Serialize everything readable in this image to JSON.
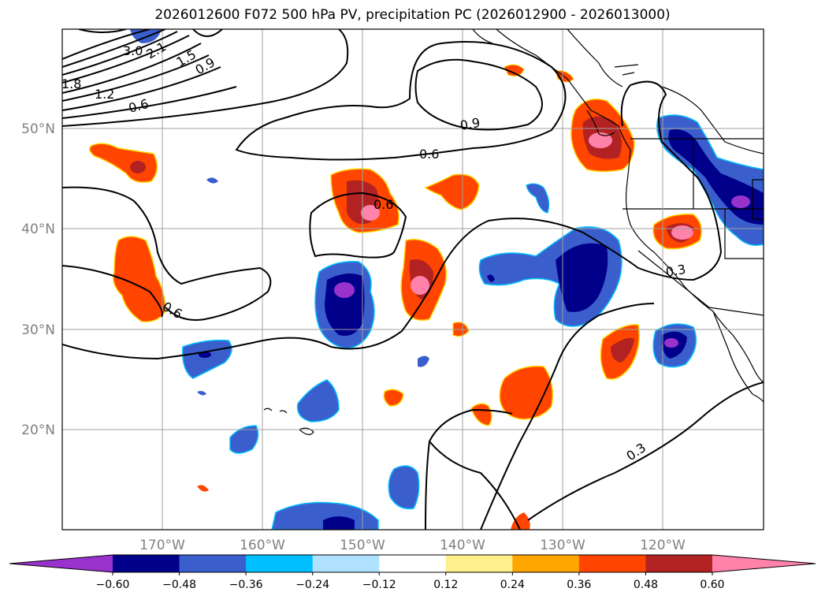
{
  "title": "2026012600 F072 500 hPa PV, precipitation PC (2026012900 - 2026013000)",
  "map": {
    "lon_labels": [
      "170°W",
      "160°W",
      "150°W",
      "140°W",
      "130°W",
      "120°W"
    ],
    "lat_labels": [
      "50°N",
      "40°N",
      "30°N",
      "20°N"
    ],
    "pv_contour_labels": [
      "3.0",
      "2.1",
      "1.5",
      "0.9",
      "1.8",
      "1.2",
      "0.6",
      "0.9",
      "0.6",
      "0.6",
      "0.6",
      "0.3",
      "0.3"
    ]
  },
  "colorbar": {
    "tick_labels": [
      "−0.60",
      "−0.48",
      "−0.36",
      "−0.24",
      "−0.12",
      "0.12",
      "0.24",
      "0.36",
      "0.48",
      "0.60"
    ],
    "colors": [
      "#9932cc",
      "#00008b",
      "#3a5fcd",
      "#00bfff",
      "#b0e2ff",
      "#ffffff",
      "#fff08c",
      "#ffa500",
      "#ff4500",
      "#b22222",
      "#ff82ab"
    ]
  }
}
